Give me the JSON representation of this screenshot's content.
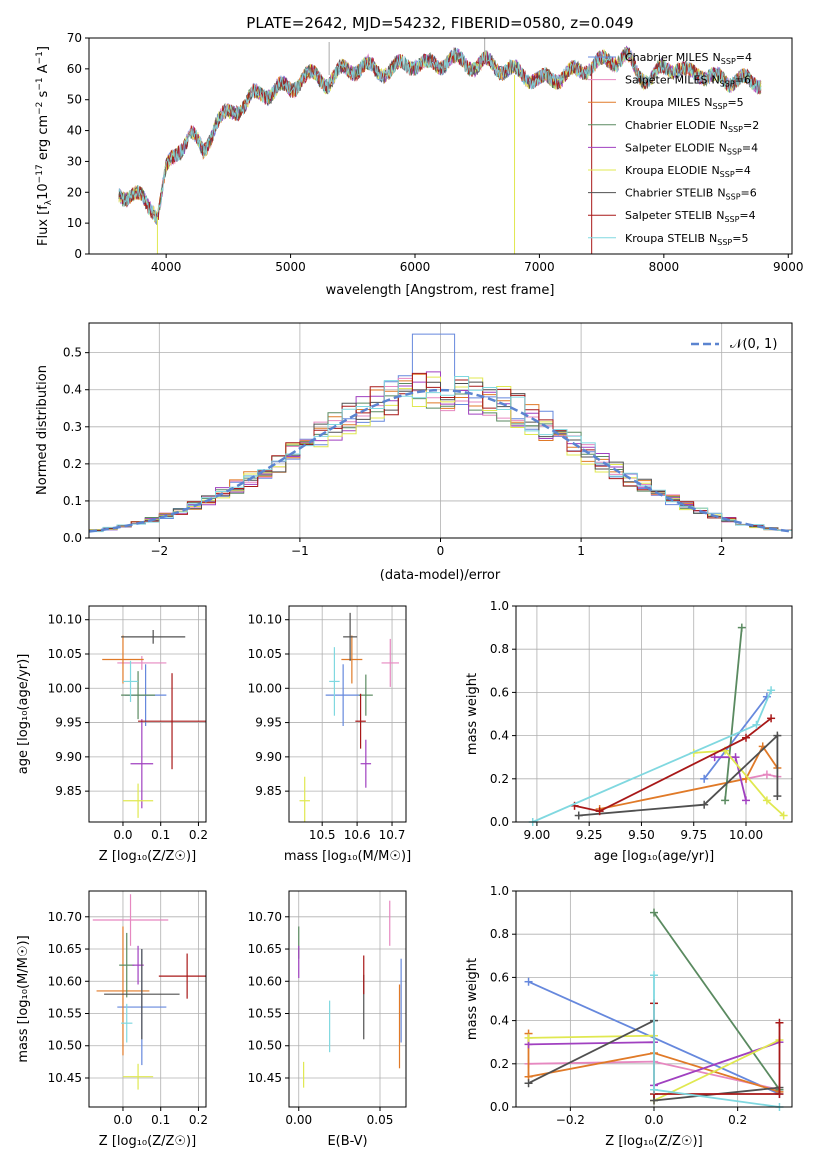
{
  "title": "PLATE=2642, MJD=54232, FIBERID=0580, z=0.049",
  "colors": [
    "#6688dd",
    "#e688c0",
    "#e07a28",
    "#5a8a60",
    "#a040c0",
    "#e0e850",
    "#505050",
    "#a81818",
    "#80d8e0"
  ],
  "chart_data": [
    {
      "id": "spectrum",
      "type": "line",
      "xlabel": "wavelength [Angstrom, rest frame]",
      "ylabel_main": "Flux [f",
      "ylabel_sub": "λ",
      "ylabel_mid": "10",
      "ylabel_sup1": "−17",
      "ylabel_rest": " erg cm",
      "ylabel_sup2": "−2",
      "ylabel_rest2": " s",
      "ylabel_sup3": "−1",
      "ylabel_rest3": " A",
      "ylabel_sup4": "−1",
      "ylabel_end": "]",
      "xlim": [
        3380,
        9030
      ],
      "ylim": [
        0,
        70
      ],
      "xticks": [
        "4000",
        "5000",
        "6000",
        "7000",
        "8000",
        "9000"
      ],
      "yticks": [
        "0",
        "10",
        "20",
        "30",
        "40",
        "50",
        "60",
        "70"
      ],
      "legend_position": "upper-right",
      "anchors_x": [
        3620,
        3700,
        3800,
        3900,
        3930,
        4000,
        4100,
        4200,
        4300,
        4400,
        4500,
        4600,
        4700,
        4800,
        4900,
        5000,
        5100,
        5200,
        5300,
        5400,
        5500,
        5600,
        5700,
        5800,
        5900,
        6000,
        6100,
        6200,
        6300,
        6400,
        6500,
        6600,
        6700,
        6800,
        6900,
        7000,
        7100,
        7200,
        7300,
        7400,
        7500,
        7600,
        7700,
        7800,
        7900,
        8000,
        8100,
        8200,
        8300,
        8400,
        8500,
        8600,
        8700,
        8780
      ],
      "anchors_y": [
        20,
        19,
        18,
        15,
        12,
        27,
        34,
        39,
        33,
        43,
        45,
        48,
        51,
        52,
        54,
        53,
        58,
        57,
        56,
        59,
        60,
        61,
        59,
        60,
        61,
        62,
        61,
        62,
        63,
        62,
        61,
        62,
        60,
        59,
        58,
        56,
        57,
        58,
        59,
        61,
        62,
        63,
        64,
        58,
        57,
        60,
        61,
        58,
        59,
        57,
        56,
        57,
        55,
        56
      ],
      "series": [
        {
          "name": "Chabrier MILES",
          "n": "4"
        },
        {
          "name": "Salpeter MILES",
          "n": "6"
        },
        {
          "name": "Kroupa MILES",
          "n": "5"
        },
        {
          "name": "Chabrier ELODIE",
          "n": "2"
        },
        {
          "name": "Salpeter ELODIE",
          "n": "4"
        },
        {
          "name": "Kroupa ELODIE",
          "n": "4"
        },
        {
          "name": "Chabrier STELIB",
          "n": "6"
        },
        {
          "name": "Salpeter STELIB",
          "n": "4"
        },
        {
          "name": "Kroupa STELIB",
          "n": "5"
        }
      ],
      "legend_sub": "SSP",
      "legend_n_prefix": "N"
    },
    {
      "id": "residuals",
      "type": "step-histogram",
      "xlabel": "(data-model)/error",
      "ylabel": "Normed distribution",
      "xlim": [
        -2.5,
        2.5
      ],
      "ylim": [
        0,
        0.58
      ],
      "xticks": [
        "−2",
        "−1",
        "0",
        "1",
        "2"
      ],
      "yticks": [
        "0.0",
        "0.1",
        "0.2",
        "0.3",
        "0.4",
        "0.5"
      ],
      "grid": true,
      "reference_curve": "𝒩(0, 1)",
      "legend_position": "upper-right",
      "bin_width": 0.1
    },
    {
      "id": "age-Z",
      "type": "errorbar",
      "xlabel": "Z [log₁₀(Z/Z☉)]",
      "ylabel": "age  [log₁₀(age/yr)]",
      "xlim": [
        -0.09,
        0.22
      ],
      "ylim": [
        9.805,
        10.12
      ],
      "xticks": [
        {
          "v": 0.0,
          "t": "0.0"
        },
        {
          "v": 0.1,
          "t": "0.1"
        },
        {
          "v": 0.2,
          "t": "0.2"
        }
      ],
      "yticks": [
        {
          "v": 9.85,
          "t": "9.85"
        },
        {
          "v": 9.9,
          "t": "9.90"
        },
        {
          "v": 9.95,
          "t": "9.95"
        },
        {
          "v": 10.0,
          "t": "10.00"
        },
        {
          "v": 10.05,
          "t": "10.05"
        },
        {
          "v": 10.1,
          "t": "10.10"
        }
      ],
      "points": [
        {
          "x": 0.06,
          "xe": 0.055,
          "y": 9.99,
          "ye": 0.045
        },
        {
          "x": 0.05,
          "xe": 0.065,
          "y": 10.037,
          "ye": 0.01
        },
        {
          "x": 0.0,
          "xe": 0.055,
          "y": 10.042,
          "ye": 0.035
        },
        {
          "x": 0.04,
          "xe": 0.045,
          "y": 9.99,
          "ye": 0.035
        },
        {
          "x": 0.05,
          "xe": 0.03,
          "y": 9.89,
          "ye": 0.065
        },
        {
          "x": 0.04,
          "xe": 0.04,
          "y": 9.836,
          "ye": 0.025
        },
        {
          "x": 0.08,
          "xe": 0.085,
          "y": 10.075,
          "ye": 0.01
        },
        {
          "x": 0.13,
          "xe": 0.09,
          "y": 9.952,
          "ye": 0.07
        },
        {
          "x": 0.02,
          "xe": 0.02,
          "y": 10.01,
          "ye": 0.03
        }
      ]
    },
    {
      "id": "age-mass",
      "type": "errorbar",
      "xlabel": "mass [log₁₀(M/M☉)]",
      "ylabel": "",
      "xlim": [
        10.405,
        10.74
      ],
      "ylim": [
        9.805,
        10.12
      ],
      "xticks": [
        {
          "v": 10.5,
          "t": "10.5"
        },
        {
          "v": 10.6,
          "t": "10.6"
        },
        {
          "v": 10.7,
          "t": "10.7"
        }
      ],
      "yticks": [
        {
          "v": 9.85,
          "t": "9.85"
        },
        {
          "v": 9.9,
          "t": "9.90"
        },
        {
          "v": 9.95,
          "t": "9.95"
        },
        {
          "v": 10.0,
          "t": "10.00"
        },
        {
          "v": 10.05,
          "t": "10.05"
        },
        {
          "v": 10.1,
          "t": "10.10"
        }
      ],
      "points": [
        {
          "x": 10.56,
          "xe": 0.05,
          "y": 9.99,
          "ye": 0.045
        },
        {
          "x": 10.695,
          "xe": 0.025,
          "y": 10.037,
          "ye": 0.035
        },
        {
          "x": 10.585,
          "xe": 0.03,
          "y": 10.042,
          "ye": 0.035
        },
        {
          "x": 10.625,
          "xe": 0.02,
          "y": 9.99,
          "ye": 0.03
        },
        {
          "x": 10.625,
          "xe": 0.015,
          "y": 9.89,
          "ye": 0.035
        },
        {
          "x": 10.45,
          "xe": 0.015,
          "y": 9.836,
          "ye": 0.035
        },
        {
          "x": 10.58,
          "xe": 0.02,
          "y": 10.075,
          "ye": 0.035
        },
        {
          "x": 10.61,
          "xe": 0.015,
          "y": 9.952,
          "ye": 0.04
        },
        {
          "x": 10.535,
          "xe": 0.015,
          "y": 10.01,
          "ye": 0.05
        }
      ]
    },
    {
      "id": "weight-age",
      "type": "line",
      "xlabel": "age  [log₁₀(age/yr)]",
      "ylabel": "mass weight",
      "xlim": [
        8.9,
        10.22
      ],
      "ylim": [
        0,
        1.0
      ],
      "xticks": [
        {
          "v": 9.0,
          "t": "9.00"
        },
        {
          "v": 9.25,
          "t": "9.25"
        },
        {
          "v": 9.5,
          "t": "9.50"
        },
        {
          "v": 9.75,
          "t": "9.75"
        },
        {
          "v": 10.0,
          "t": "10.00"
        }
      ],
      "yticks": [
        {
          "v": 0,
          "t": "0.0"
        },
        {
          "v": 0.2,
          "t": "0.2"
        },
        {
          "v": 0.4,
          "t": "0.4"
        },
        {
          "v": 0.6,
          "t": "0.6"
        },
        {
          "v": 0.8,
          "t": "0.8"
        },
        {
          "v": 1.0,
          "t": "1.0"
        }
      ],
      "grid": true,
      "series": [
        {
          "x": [
            9.8,
            10.1
          ],
          "y": [
            0.2,
            0.58
          ]
        },
        {
          "x": [
            10.0,
            10.1,
            10.15
          ],
          "y": [
            0.2,
            0.22,
            0.21
          ]
        },
        {
          "x": [
            9.3,
            10.0,
            10.08,
            10.15
          ],
          "y": [
            0.06,
            0.2,
            0.35,
            0.25
          ]
        },
        {
          "x": [
            9.9,
            9.98
          ],
          "y": [
            0.1,
            0.9
          ]
        },
        {
          "x": [
            9.85,
            9.95,
            10.0
          ],
          "y": [
            0.3,
            0.3,
            0.1
          ]
        },
        {
          "x": [
            9.75,
            9.9,
            10.1,
            10.18
          ],
          "y": [
            0.32,
            0.33,
            0.1,
            0.03
          ]
        },
        {
          "x": [
            9.2,
            9.8,
            10.15,
            10.15
          ],
          "y": [
            0.03,
            0.08,
            0.4,
            0.12
          ]
        },
        {
          "x": [
            9.18,
            9.3,
            10.0,
            10.12
          ],
          "y": [
            0.075,
            0.05,
            0.39,
            0.48
          ]
        },
        {
          "x": [
            8.98,
            10.05,
            10.12
          ],
          "y": [
            0.0,
            0.45,
            0.61
          ]
        }
      ]
    },
    {
      "id": "mass-Z",
      "type": "errorbar",
      "xlabel": "Z [log₁₀(Z/Z☉)]",
      "ylabel": "mass [log₁₀(M/M☉)]",
      "xlim": [
        -0.09,
        0.22
      ],
      "ylim": [
        10.405,
        10.74
      ],
      "xticks": [
        {
          "v": 0.0,
          "t": "0.0"
        },
        {
          "v": 0.1,
          "t": "0.1"
        },
        {
          "v": 0.2,
          "t": "0.2"
        }
      ],
      "yticks": [
        {
          "v": 10.45,
          "t": "10.45"
        },
        {
          "v": 10.5,
          "t": "10.50"
        },
        {
          "v": 10.55,
          "t": "10.55"
        },
        {
          "v": 10.6,
          "t": "10.60"
        },
        {
          "v": 10.65,
          "t": "10.65"
        },
        {
          "v": 10.7,
          "t": "10.70"
        }
      ],
      "points": [
        {
          "x": 0.05,
          "xe": 0.065,
          "y": 10.56,
          "ye": 0.09
        },
        {
          "x": 0.02,
          "xe": 0.1,
          "y": 10.695,
          "ye": 0.04
        },
        {
          "x": 0.0,
          "xe": 0.07,
          "y": 10.585,
          "ye": 0.1
        },
        {
          "x": 0.01,
          "xe": 0.02,
          "y": 10.625,
          "ye": 0.05
        },
        {
          "x": 0.04,
          "xe": 0.015,
          "y": 10.625,
          "ye": 0.03
        },
        {
          "x": 0.04,
          "xe": 0.04,
          "y": 10.452,
          "ye": 0.02
        },
        {
          "x": 0.05,
          "xe": 0.1,
          "y": 10.58,
          "ye": 0.07
        },
        {
          "x": 0.17,
          "xe": 0.075,
          "y": 10.608,
          "ye": 0.035
        },
        {
          "x": 0.01,
          "xe": 0.015,
          "y": 10.535,
          "ye": 0.03
        }
      ]
    },
    {
      "id": "mass-EBV",
      "type": "errorbar",
      "xlabel": "E(B-V)",
      "ylabel": "",
      "xlim": [
        -0.006,
        0.066
      ],
      "ylim": [
        10.405,
        10.74
      ],
      "xticks": [
        {
          "v": 0.0,
          "t": "0.00"
        },
        {
          "v": 0.05,
          "t": "0.05"
        }
      ],
      "yticks": [
        {
          "v": 10.45,
          "t": "10.45"
        },
        {
          "v": 10.5,
          "t": "10.50"
        },
        {
          "v": 10.55,
          "t": "10.55"
        },
        {
          "v": 10.6,
          "t": "10.60"
        },
        {
          "v": 10.65,
          "t": "10.65"
        },
        {
          "v": 10.7,
          "t": "10.70"
        }
      ],
      "points": [
        {
          "x": 0.063,
          "xe": 0,
          "y": 10.57,
          "ye": 0.065
        },
        {
          "x": 0.056,
          "xe": 0,
          "y": 10.69,
          "ye": 0.035
        },
        {
          "x": 0.062,
          "xe": 0,
          "y": 10.53,
          "ye": 0.065
        },
        {
          "x": 0.0,
          "xe": 0,
          "y": 10.66,
          "ye": 0.025
        },
        {
          "x": 0.0,
          "xe": 0,
          "y": 10.63,
          "ye": 0.025
        },
        {
          "x": 0.003,
          "xe": 0,
          "y": 10.455,
          "ye": 0.02
        },
        {
          "x": 0.04,
          "xe": 0,
          "y": 10.56,
          "ye": 0.05
        },
        {
          "x": 0.04,
          "xe": 0,
          "y": 10.61,
          "ye": 0.03
        },
        {
          "x": 0.019,
          "xe": 0,
          "y": 10.53,
          "ye": 0.04
        }
      ]
    },
    {
      "id": "weight-Z",
      "type": "line",
      "xlabel": "Z [log₁₀(Z/Z☉)]",
      "ylabel": "mass weight",
      "xlim": [
        -0.33,
        0.33
      ],
      "ylim": [
        0,
        1.0
      ],
      "xticks": [
        {
          "v": -0.2,
          "t": "−0.2"
        },
        {
          "v": 0.0,
          "t": "0.0"
        },
        {
          "v": 0.2,
          "t": "0.2"
        }
      ],
      "yticks": [
        {
          "v": 0,
          "t": "0.0"
        },
        {
          "v": 0.2,
          "t": "0.2"
        },
        {
          "v": 0.4,
          "t": "0.4"
        },
        {
          "v": 0.6,
          "t": "0.6"
        },
        {
          "v": 0.8,
          "t": "0.8"
        },
        {
          "v": 1.0,
          "t": "1.0"
        }
      ],
      "grid": true,
      "series": [
        {
          "x": [
            -0.3,
            0.3
          ],
          "y": [
            0.58,
            0.06
          ]
        },
        {
          "x": [
            -0.3,
            0.0,
            0.3
          ],
          "y": [
            0.2,
            0.21,
            0.08
          ]
        },
        {
          "x": [
            -0.3,
            -0.3,
            0.0,
            0.3
          ],
          "y": [
            0.34,
            0.14,
            0.25,
            0.07
          ]
        },
        {
          "x": [
            0.0,
            0.3
          ],
          "y": [
            0.9,
            0.08
          ]
        },
        {
          "x": [
            -0.3,
            0.0,
            0.0,
            0.3
          ],
          "y": [
            0.29,
            0.3,
            0.1,
            0.3
          ]
        },
        {
          "x": [
            -0.3,
            0.0,
            0.0,
            0.3
          ],
          "y": [
            0.32,
            0.33,
            0.03,
            0.31
          ]
        },
        {
          "x": [
            -0.3,
            0.0,
            0.0,
            0.3
          ],
          "y": [
            0.11,
            0.4,
            0.03,
            0.09
          ]
        },
        {
          "x": [
            0.0,
            0.0,
            0.3,
            0.3
          ],
          "y": [
            0.48,
            0.06,
            0.06,
            0.39
          ]
        },
        {
          "x": [
            0.0,
            0.0,
            0.3
          ],
          "y": [
            0.61,
            0.08,
            0.0
          ]
        }
      ]
    }
  ]
}
